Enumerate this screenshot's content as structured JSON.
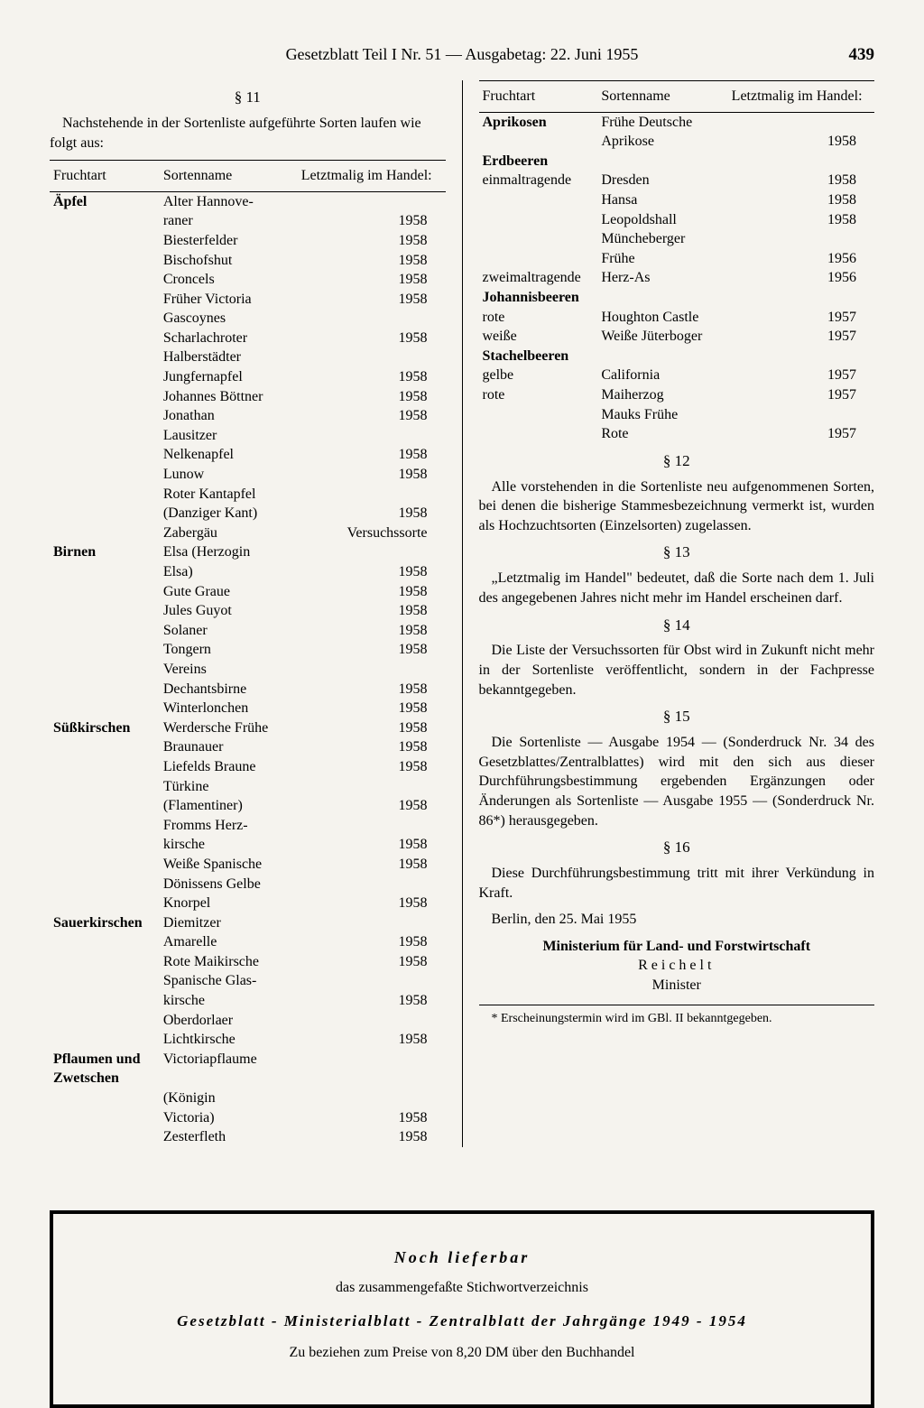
{
  "header": {
    "title": "Gesetzblatt Teil I Nr. 51 — Ausgabetag: 22. Juni 1955",
    "page_number": "439"
  },
  "left": {
    "section_head": "§ 11",
    "intro": "Nachstehende in der Sortenliste aufgeführte Sorten laufen wie folgt aus:",
    "table_headers": [
      "Fruchtart",
      "Sortenname",
      "Letztmalig im Handel:"
    ],
    "groups": [
      {
        "category": "Äpfel",
        "rows": [
          [
            "",
            "Alter Hannove-",
            ""
          ],
          [
            "",
            "raner",
            "1958"
          ],
          [
            "",
            "Biesterfelder",
            "1958"
          ],
          [
            "",
            "Bischofshut",
            "1958"
          ],
          [
            "",
            "Croncels",
            "1958"
          ],
          [
            "",
            "Früher Victoria",
            "1958"
          ],
          [
            "",
            "Gascoynes",
            ""
          ],
          [
            "",
            "Scharlachroter",
            "1958"
          ],
          [
            "",
            "Halberstädter",
            ""
          ],
          [
            "",
            "Jungfernapfel",
            "1958"
          ],
          [
            "",
            "Johannes Böttner",
            "1958"
          ],
          [
            "",
            "Jonathan",
            "1958"
          ],
          [
            "",
            "Lausitzer",
            ""
          ],
          [
            "",
            "Nelkenapfel",
            "1958"
          ],
          [
            "",
            "Lunow",
            "1958"
          ],
          [
            "",
            "Roter Kantapfel",
            ""
          ],
          [
            "",
            "(Danziger Kant)",
            "1958"
          ],
          [
            "",
            "Zabergäu",
            "Versuchssorte"
          ]
        ]
      },
      {
        "category": "Birnen",
        "rows": [
          [
            "",
            "Elsa (Herzogin",
            ""
          ],
          [
            "",
            "Elsa)",
            "1958"
          ],
          [
            "",
            "Gute Graue",
            "1958"
          ],
          [
            "",
            "Jules Guyot",
            "1958"
          ],
          [
            "",
            "Solaner",
            "1958"
          ],
          [
            "",
            "Tongern",
            "1958"
          ],
          [
            "",
            "Vereins",
            ""
          ],
          [
            "",
            "Dechantsbirne",
            "1958"
          ],
          [
            "",
            "Winterlonchen",
            "1958"
          ]
        ]
      },
      {
        "category": "Süßkirschen",
        "rows": [
          [
            "",
            "Werdersche Frühe",
            "1958"
          ],
          [
            "",
            "Braunauer",
            "1958"
          ],
          [
            "",
            "Liefelds Braune",
            "1958"
          ],
          [
            "",
            "Türkine",
            ""
          ],
          [
            "",
            "(Flamentiner)",
            "1958"
          ],
          [
            "",
            "Fromms Herz-",
            ""
          ],
          [
            "",
            "kirsche",
            "1958"
          ],
          [
            "",
            "Weiße Spanische",
            "1958"
          ],
          [
            "",
            "Dönissens Gelbe",
            ""
          ],
          [
            "",
            "Knorpel",
            "1958"
          ]
        ]
      },
      {
        "category": "Sauerkirschen",
        "rows": [
          [
            "",
            "Diemitzer",
            ""
          ],
          [
            "",
            "Amarelle",
            "1958"
          ],
          [
            "",
            "Rote Maikirsche",
            "1958"
          ],
          [
            "",
            "Spanische Glas-",
            ""
          ],
          [
            "",
            "kirsche",
            "1958"
          ],
          [
            "",
            "Oberdorlaer",
            ""
          ],
          [
            "",
            "Lichtkirsche",
            "1958"
          ]
        ]
      },
      {
        "category": "Pflaumen und Zwetschen",
        "rows": [
          [
            "",
            "Victoriapflaume",
            ""
          ],
          [
            "",
            "(Königin",
            ""
          ],
          [
            "",
            "Victoria)",
            "1958"
          ],
          [
            "",
            "Zesterfleth",
            "1958"
          ]
        ]
      }
    ]
  },
  "right": {
    "table_headers": [
      "Fruchtart",
      "Sortenname",
      "Letztmalig im Handel:"
    ],
    "groups": [
      {
        "category": "Aprikosen",
        "rows": [
          [
            "",
            "Frühe Deutsche",
            ""
          ],
          [
            "",
            "Aprikose",
            "1958"
          ]
        ]
      },
      {
        "category": "Erdbeeren",
        "rows": []
      },
      {
        "subcat": "einmaltragende",
        "rows": [
          [
            "",
            "Dresden",
            "1958"
          ],
          [
            "",
            "Hansa",
            "1958"
          ],
          [
            "",
            "Leopoldshall",
            "1958"
          ],
          [
            "",
            "Müncheberger",
            ""
          ],
          [
            "",
            "Frühe",
            "1956"
          ]
        ]
      },
      {
        "subcat_inline": "zweimaltragende",
        "rows": [
          [
            "",
            "Herz-As",
            "1956"
          ]
        ]
      },
      {
        "category": "Johannisbeeren",
        "rows": []
      },
      {
        "subcat": "rote",
        "rows": [
          [
            "",
            "Houghton Castle",
            "1957"
          ]
        ]
      },
      {
        "subcat": "weiße",
        "rows": [
          [
            "",
            "Weiße Jüterboger",
            "1957"
          ]
        ]
      },
      {
        "category": "Stachelbeeren",
        "rows": []
      },
      {
        "subcat": "gelbe",
        "rows": [
          [
            "",
            "California",
            "1957"
          ]
        ]
      },
      {
        "subcat": "rote",
        "rows": [
          [
            "",
            "Maiherzog",
            "1957"
          ],
          [
            "",
            "Mauks Frühe",
            ""
          ],
          [
            "",
            "Rote",
            "1957"
          ]
        ]
      }
    ],
    "sections": [
      {
        "head": "§ 12",
        "text": "Alle vorstehenden in die Sortenliste neu aufgenommenen Sorten, bei denen die bisherige Stammesbezeichnung vermerkt ist, wurden als Hochzuchtsorten (Einzelsorten) zugelassen."
      },
      {
        "head": "§ 13",
        "text": "„Letztmalig im Handel\" bedeutet, daß die Sorte nach dem 1. Juli des angegebenen Jahres nicht mehr im Handel erscheinen darf."
      },
      {
        "head": "§ 14",
        "text": "Die Liste der Versuchssorten für Obst wird in Zukunft nicht mehr in der Sortenliste veröffentlicht, sondern in der Fachpresse bekanntgegeben."
      },
      {
        "head": "§ 15",
        "text": "Die Sortenliste — Ausgabe 1954 — (Sonderdruck Nr. 34 des Gesetzblattes/Zentralblattes) wird mit den sich aus dieser Durchführungsbestimmung ergebenden Ergänzungen oder Änderungen als Sortenliste — Ausgabe 1955 — (Sonderdruck Nr. 86*) herausgegeben."
      },
      {
        "head": "§ 16",
        "text": "Diese Durchführungsbestimmung tritt mit ihrer Verkündung in Kraft."
      }
    ],
    "date_line": "Berlin, den 25. Mai 1955",
    "ministry": "Ministerium für Land- und Forstwirtschaft",
    "signatory": "Reichelt",
    "role": "Minister",
    "footnote": "* Erscheinungstermin wird im GBl. II bekanntgegeben."
  },
  "ad": {
    "line1": "Noch lieferbar",
    "line2": "das zusammengefaßte Stichwortverzeichnis",
    "line3": "Gesetzblatt - Ministerialblatt - Zentralblatt der Jahrgänge 1949 - 1954",
    "line4": "Zu beziehen zum Preise von 8,20 DM über den Buchhandel"
  }
}
